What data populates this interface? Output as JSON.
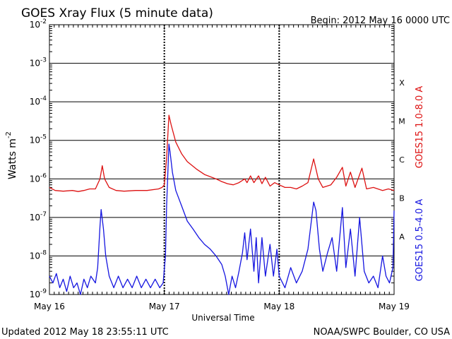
{
  "chart_data": {
    "type": "line",
    "title": "GOES Xray Flux (5 minute data)",
    "begin": "Begin:  2012 May 16 0000 UTC",
    "ylabel_base": "Watts m",
    "ylabel_exp": "-2",
    "xlabel": "Universal Time",
    "y_scale": "log",
    "ylim": [
      1e-09,
      0.01
    ],
    "y_ticks": [
      {
        "value": 1e-09,
        "base": "10",
        "exp": "-9"
      },
      {
        "value": 1e-08,
        "base": "10",
        "exp": "-8"
      },
      {
        "value": 1e-07,
        "base": "10",
        "exp": "-7"
      },
      {
        "value": 1e-06,
        "base": "10",
        "exp": "-6"
      },
      {
        "value": 1e-05,
        "base": "10",
        "exp": "-5"
      },
      {
        "value": 0.0001,
        "base": "10",
        "exp": "-4"
      },
      {
        "value": 0.001,
        "base": "10",
        "exp": "-3"
      },
      {
        "value": 0.01,
        "base": "10",
        "exp": "-2"
      }
    ],
    "x_ticks": [
      "May 16",
      "May 17",
      "May 18",
      "May 19"
    ],
    "xlim_days": [
      0,
      3
    ],
    "flare_classes": [
      {
        "label": "A",
        "value": 3.16e-08
      },
      {
        "label": "B",
        "value": 3.16e-07
      },
      {
        "label": "C",
        "value": 3.16e-06
      },
      {
        "label": "M",
        "value": 3.16e-05
      },
      {
        "label": "X",
        "value": 0.000316
      }
    ],
    "grid": {
      "horizontal": true,
      "vertical_dotted_at_days": true
    },
    "series": [
      {
        "name": "GOES15 1.0-8.0 A",
        "color": "#dd1111",
        "points": [
          [
            0.0,
            6e-07
          ],
          [
            0.05,
            5e-07
          ],
          [
            0.12,
            4.8e-07
          ],
          [
            0.2,
            5e-07
          ],
          [
            0.25,
            4.7e-07
          ],
          [
            0.3,
            5e-07
          ],
          [
            0.35,
            5.5e-07
          ],
          [
            0.4,
            5.5e-07
          ],
          [
            0.44,
            1e-06
          ],
          [
            0.46,
            2.2e-06
          ],
          [
            0.48,
            1e-06
          ],
          [
            0.52,
            6e-07
          ],
          [
            0.58,
            5e-07
          ],
          [
            0.65,
            4.8e-07
          ],
          [
            0.75,
            5e-07
          ],
          [
            0.85,
            5e-07
          ],
          [
            0.95,
            5.5e-07
          ],
          [
            0.98,
            6e-07
          ],
          [
            1.0,
            7e-07
          ],
          [
            1.02,
            3.5e-06
          ],
          [
            1.04,
            4.5e-05
          ],
          [
            1.06,
            2.5e-05
          ],
          [
            1.1,
            9e-06
          ],
          [
            1.15,
            4.5e-06
          ],
          [
            1.2,
            2.8e-06
          ],
          [
            1.28,
            1.8e-06
          ],
          [
            1.35,
            1.3e-06
          ],
          [
            1.45,
            1e-06
          ],
          [
            1.5,
            8.5e-07
          ],
          [
            1.55,
            7.5e-07
          ],
          [
            1.6,
            7e-07
          ],
          [
            1.65,
            8e-07
          ],
          [
            1.7,
            1e-06
          ],
          [
            1.72,
            8e-07
          ],
          [
            1.75,
            1.2e-06
          ],
          [
            1.78,
            8e-07
          ],
          [
            1.82,
            1.2e-06
          ],
          [
            1.85,
            7.5e-07
          ],
          [
            1.88,
            1.1e-06
          ],
          [
            1.92,
            6.5e-07
          ],
          [
            1.96,
            8e-07
          ],
          [
            2.0,
            7e-07
          ],
          [
            2.05,
            6e-07
          ],
          [
            2.1,
            6e-07
          ],
          [
            2.15,
            5.5e-07
          ],
          [
            2.2,
            6.5e-07
          ],
          [
            2.25,
            8e-07
          ],
          [
            2.3,
            3.3e-06
          ],
          [
            2.34,
            1e-06
          ],
          [
            2.38,
            6e-07
          ],
          [
            2.45,
            7e-07
          ],
          [
            2.5,
            1.1e-06
          ],
          [
            2.55,
            2e-06
          ],
          [
            2.58,
            6.5e-07
          ],
          [
            2.62,
            1.5e-06
          ],
          [
            2.66,
            6e-07
          ],
          [
            2.72,
            1.9e-06
          ],
          [
            2.76,
            5.5e-07
          ],
          [
            2.82,
            6e-07
          ],
          [
            2.9,
            5e-07
          ],
          [
            2.95,
            5.5e-07
          ],
          [
            3.0,
            5e-07
          ]
        ]
      },
      {
        "name": "GOES15 0.5-4.0 A",
        "color": "#1515e0",
        "points": [
          [
            0.0,
            3e-09
          ],
          [
            0.03,
            2e-09
          ],
          [
            0.06,
            3.5e-09
          ],
          [
            0.09,
            1.5e-09
          ],
          [
            0.12,
            2.5e-09
          ],
          [
            0.15,
            1.2e-09
          ],
          [
            0.18,
            3e-09
          ],
          [
            0.21,
            1.5e-09
          ],
          [
            0.24,
            2e-09
          ],
          [
            0.27,
            1e-09
          ],
          [
            0.3,
            2.5e-09
          ],
          [
            0.33,
            1.5e-09
          ],
          [
            0.36,
            3e-09
          ],
          [
            0.4,
            2e-09
          ],
          [
            0.42,
            5e-09
          ],
          [
            0.44,
            6e-08
          ],
          [
            0.45,
            1.6e-07
          ],
          [
            0.47,
            5e-08
          ],
          [
            0.49,
            1e-08
          ],
          [
            0.52,
            3e-09
          ],
          [
            0.56,
            1.5e-09
          ],
          [
            0.6,
            3e-09
          ],
          [
            0.64,
            1.5e-09
          ],
          [
            0.68,
            2.5e-09
          ],
          [
            0.72,
            1.5e-09
          ],
          [
            0.76,
            3e-09
          ],
          [
            0.8,
            1.5e-09
          ],
          [
            0.84,
            2.5e-09
          ],
          [
            0.88,
            1.5e-09
          ],
          [
            0.92,
            2.5e-09
          ],
          [
            0.96,
            1.5e-09
          ],
          [
            0.99,
            2e-09
          ],
          [
            1.01,
            1e-08
          ],
          [
            1.02,
            2e-07
          ],
          [
            1.04,
            8e-06
          ],
          [
            1.05,
            5e-06
          ],
          [
            1.07,
            1.5e-06
          ],
          [
            1.1,
            5e-07
          ],
          [
            1.15,
            2e-07
          ],
          [
            1.2,
            8e-08
          ],
          [
            1.25,
            5e-08
          ],
          [
            1.3,
            3e-08
          ],
          [
            1.35,
            2e-08
          ],
          [
            1.4,
            1.5e-08
          ],
          [
            1.45,
            1e-08
          ],
          [
            1.5,
            6e-09
          ],
          [
            1.53,
            3e-09
          ],
          [
            1.56,
            1e-09
          ],
          [
            1.59,
            3e-09
          ],
          [
            1.62,
            1.5e-09
          ],
          [
            1.65,
            4e-09
          ],
          [
            1.68,
            1.2e-08
          ],
          [
            1.7,
            4e-08
          ],
          [
            1.72,
            8e-09
          ],
          [
            1.75,
            5e-08
          ],
          [
            1.78,
            4e-09
          ],
          [
            1.8,
            3e-08
          ],
          [
            1.82,
            2e-09
          ],
          [
            1.85,
            3e-08
          ],
          [
            1.88,
            3e-09
          ],
          [
            1.92,
            2e-08
          ],
          [
            1.95,
            3e-09
          ],
          [
            1.98,
            1.5e-08
          ],
          [
            2.0,
            3e-09
          ],
          [
            2.05,
            1.5e-09
          ],
          [
            2.1,
            5e-09
          ],
          [
            2.15,
            2e-09
          ],
          [
            2.2,
            4e-09
          ],
          [
            2.25,
            1.5e-08
          ],
          [
            2.3,
            2.5e-07
          ],
          [
            2.32,
            1.5e-07
          ],
          [
            2.35,
            1.5e-08
          ],
          [
            2.38,
            4e-09
          ],
          [
            2.42,
            1.2e-08
          ],
          [
            2.46,
            3e-08
          ],
          [
            2.5,
            4e-09
          ],
          [
            2.55,
            1.8e-07
          ],
          [
            2.58,
            5e-09
          ],
          [
            2.62,
            5e-08
          ],
          [
            2.66,
            3e-09
          ],
          [
            2.7,
            1e-07
          ],
          [
            2.74,
            4e-09
          ],
          [
            2.78,
            2e-09
          ],
          [
            2.82,
            3e-09
          ],
          [
            2.86,
            1.5e-09
          ],
          [
            2.9,
            1e-08
          ],
          [
            2.93,
            3e-09
          ],
          [
            2.96,
            2e-09
          ],
          [
            2.99,
            5e-09
          ],
          [
            3.0,
            1.5e-07
          ]
        ]
      }
    ]
  },
  "footer": {
    "updated": "Updated 2012 May 18 23:55:11 UTC",
    "credit": "NOAA/SWPC Boulder, CO USA"
  }
}
